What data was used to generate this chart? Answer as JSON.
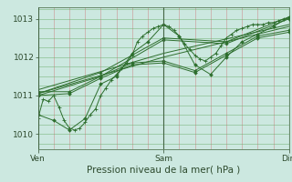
{
  "title": "",
  "xlabel": "Pression niveau de la mer( hPa )",
  "ylabel": "",
  "bg_color": "#cce8e0",
  "plot_bg_color": "#cce8e0",
  "line_color": "#2d6e2d",
  "marker_color": "#2d6e2d",
  "grid_h_color": "#66aa66",
  "grid_v_color": "#cc8888",
  "yticks": [
    1010,
    1011,
    1012,
    1013
  ],
  "ylim": [
    1009.6,
    1013.3
  ],
  "xlim": [
    0,
    48
  ],
  "xtick_positions": [
    0,
    24,
    48
  ],
  "xtick_labels": [
    "Ven",
    "Sam",
    "Dim"
  ],
  "line1_x": [
    0,
    1,
    2,
    3,
    4,
    5,
    6,
    7,
    8,
    9,
    10,
    11,
    12,
    13,
    14,
    15,
    16,
    17,
    18,
    19,
    20,
    21,
    22,
    23,
    24,
    25,
    26,
    27,
    28,
    29,
    30,
    31,
    32,
    33,
    34,
    35,
    36,
    37,
    38,
    39,
    40,
    41,
    42,
    43,
    44,
    45,
    46,
    47,
    48
  ],
  "line1_y": [
    1010.4,
    1010.9,
    1010.85,
    1011.0,
    1010.7,
    1010.35,
    1010.15,
    1010.1,
    1010.15,
    1010.3,
    1010.5,
    1010.65,
    1011.0,
    1011.2,
    1011.4,
    1011.55,
    1011.7,
    1011.85,
    1012.05,
    1012.4,
    1012.55,
    1012.65,
    1012.75,
    1012.8,
    1012.85,
    1012.8,
    1012.7,
    1012.55,
    1012.35,
    1012.2,
    1012.05,
    1011.95,
    1011.9,
    1012.0,
    1012.1,
    1012.3,
    1012.5,
    1012.6,
    1012.7,
    1012.75,
    1012.8,
    1012.85,
    1012.85,
    1012.85,
    1012.9,
    1012.9,
    1012.95,
    1013.0,
    1013.0
  ],
  "line2_x": [
    0,
    3,
    6,
    9,
    12,
    15,
    18,
    21,
    24,
    27,
    30,
    33,
    36,
    39,
    42,
    45,
    48
  ],
  "line2_y": [
    1010.5,
    1010.35,
    1010.1,
    1010.4,
    1011.3,
    1011.5,
    1012.1,
    1012.4,
    1012.85,
    1012.55,
    1011.8,
    1011.55,
    1012.0,
    1012.4,
    1012.6,
    1012.8,
    1013.05
  ],
  "line3_x": [
    0,
    6,
    12,
    18,
    24,
    30,
    36,
    42,
    48
  ],
  "line3_y": [
    1011.0,
    1011.05,
    1011.45,
    1011.8,
    1011.85,
    1011.6,
    1012.05,
    1012.5,
    1012.65
  ],
  "line4_x": [
    0,
    6,
    12,
    18,
    24,
    30,
    36,
    42,
    48
  ],
  "line4_y": [
    1011.1,
    1011.1,
    1011.5,
    1011.85,
    1011.9,
    1011.65,
    1012.1,
    1012.55,
    1012.7
  ],
  "line5_x": [
    0,
    12,
    24,
    36,
    48
  ],
  "line5_y": [
    1011.05,
    1011.6,
    1012.5,
    1012.4,
    1013.05
  ],
  "line6_x": [
    0,
    12,
    24,
    36,
    48
  ],
  "line6_y": [
    1011.0,
    1011.5,
    1012.45,
    1012.35,
    1013.0
  ],
  "line7_x": [
    0,
    24,
    48
  ],
  "line7_y": [
    1011.05,
    1012.0,
    1012.8
  ],
  "line8_x": [
    0,
    24,
    48
  ],
  "line8_y": [
    1011.15,
    1012.1,
    1012.85
  ],
  "tick_fontsize": 6.5,
  "xlabel_fontsize": 7.5
}
